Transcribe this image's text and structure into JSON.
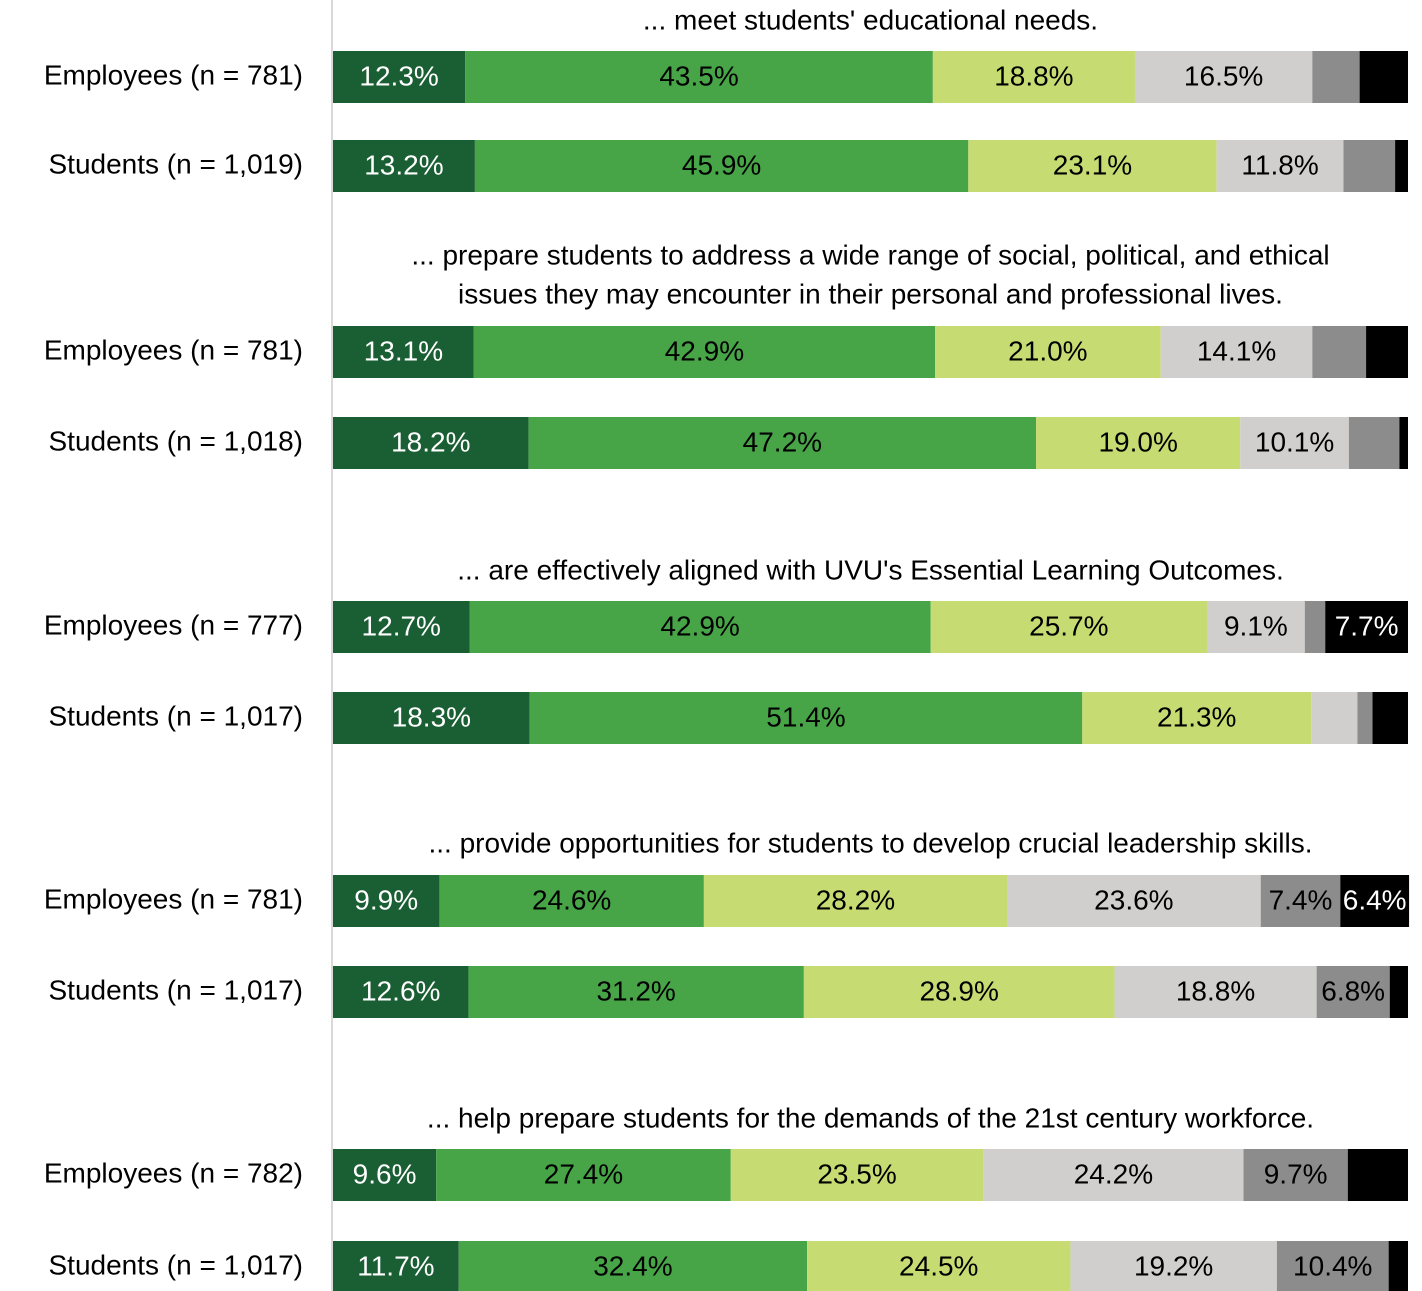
{
  "chart_data": {
    "type": "stacked_bar",
    "xlim": [
      0,
      100
    ],
    "colors": [
      "#1a5e33",
      "#47a447",
      "#c6dc72",
      "#d0cfcd",
      "#8c8c8c",
      "#000000"
    ],
    "label_colors": [
      "#ffffff",
      "#000000",
      "#000000",
      "#000000",
      "#000000",
      "#ffffff"
    ],
    "groups": [
      {
        "title": [
          "... meet students' educational needs."
        ],
        "rows": [
          {
            "label": "Employees (n = 781)",
            "values": [
              12.3,
              43.5,
              18.8,
              16.5,
              4.4,
              4.5
            ],
            "value_labels": [
              "12.3%",
              "43.5%",
              "18.8%",
              "16.5%",
              null,
              null
            ]
          },
          {
            "label": "Students (n = 1,019)",
            "values": [
              13.2,
              45.9,
              23.1,
              11.8,
              4.8,
              1.2
            ],
            "value_labels": [
              "13.2%",
              "45.9%",
              "23.1%",
              "11.8%",
              null,
              null
            ]
          }
        ]
      },
      {
        "title": [
          "... prepare students to address a wide range of social, political, and ethical",
          "issues they may encounter in their personal and professional lives."
        ],
        "rows": [
          {
            "label": "Employees (n = 781)",
            "values": [
              13.1,
              42.9,
              21.0,
              14.1,
              5.0,
              3.9
            ],
            "value_labels": [
              "13.1%",
              "42.9%",
              "21.0%",
              "14.1%",
              null,
              null
            ]
          },
          {
            "label": "Students (n = 1,018)",
            "values": [
              18.2,
              47.2,
              19.0,
              10.1,
              4.7,
              0.8
            ],
            "value_labels": [
              "18.2%",
              "47.2%",
              "19.0%",
              "10.1%",
              null,
              null
            ]
          }
        ]
      },
      {
        "title": [
          "... are effectively aligned with UVU's Essential Learning Outcomes."
        ],
        "rows": [
          {
            "label": "Employees (n = 777)",
            "values": [
              12.7,
              42.9,
              25.7,
              9.1,
              1.9,
              7.7
            ],
            "value_labels": [
              "12.7%",
              "42.9%",
              "25.7%",
              "9.1%",
              null,
              "7.7%"
            ]
          },
          {
            "label": "Students (n = 1,017)",
            "values": [
              18.3,
              51.4,
              21.3,
              4.3,
              1.4,
              3.3
            ],
            "value_labels": [
              "18.3%",
              "51.4%",
              "21.3%",
              null,
              null,
              null
            ]
          }
        ]
      },
      {
        "title": [
          "... provide opportunities for students to develop crucial leadership skills."
        ],
        "rows": [
          {
            "label": "Employees (n = 781)",
            "values": [
              9.9,
              24.6,
              28.2,
              23.6,
              7.4,
              6.4
            ],
            "value_labels": [
              "9.9%",
              "24.6%",
              "28.2%",
              "23.6%",
              "7.4%",
              "6.4%"
            ]
          },
          {
            "label": "Students (n = 1,017)",
            "values": [
              12.6,
              31.2,
              28.9,
              18.8,
              6.8,
              1.7
            ],
            "value_labels": [
              "12.6%",
              "31.2%",
              "28.9%",
              "18.8%",
              "6.8%",
              null
            ]
          }
        ]
      },
      {
        "title": [
          "... help prepare students for the demands of the 21st century workforce."
        ],
        "rows": [
          {
            "label": "Employees (n = 782)",
            "values": [
              9.6,
              27.4,
              23.5,
              24.2,
              9.7,
              5.6
            ],
            "value_labels": [
              "9.6%",
              "27.4%",
              "23.5%",
              "24.2%",
              "9.7%",
              null
            ]
          },
          {
            "label": "Students (n = 1,017)",
            "values": [
              11.7,
              32.4,
              24.5,
              19.2,
              10.4,
              1.8
            ],
            "value_labels": [
              "11.7%",
              "32.4%",
              "24.5%",
              "19.2%",
              "10.4%",
              null
            ]
          }
        ]
      }
    ]
  }
}
